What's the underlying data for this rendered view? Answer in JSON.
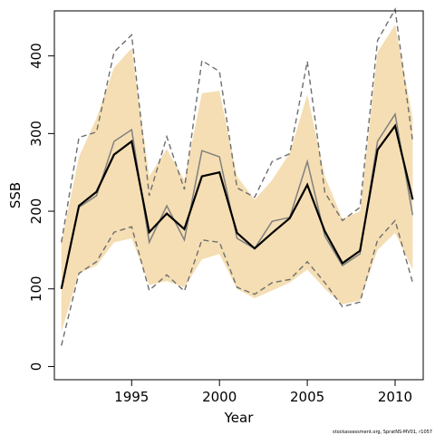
{
  "chart_data": {
    "type": "line",
    "xlabel": "Year",
    "ylabel": "SSB",
    "xlim": [
      1990.6,
      2011.6
    ],
    "ylim": [
      -17,
      458
    ],
    "x_ticks": [
      1995,
      2000,
      2005,
      2010
    ],
    "y_ticks": [
      0,
      100,
      200,
      300,
      400
    ],
    "grid": false,
    "legend": "none",
    "years": [
      1991,
      1992,
      1993,
      1994,
      1995,
      1996,
      1997,
      1998,
      1999,
      2000,
      2001,
      2002,
      2003,
      2004,
      2005,
      2006,
      2007,
      2008,
      2009,
      2010,
      2011
    ],
    "series": [
      {
        "role": "estimate",
        "values": [
          100,
          207,
          225,
          273,
          290,
          173,
          197,
          177,
          245,
          250,
          172,
          152,
          172,
          191,
          234,
          174,
          133,
          149,
          279,
          310,
          215
        ]
      },
      {
        "role": "alternative-estimate",
        "values": [
          100,
          205,
          220,
          290,
          305,
          160,
          207,
          163,
          278,
          270,
          165,
          152,
          187,
          192,
          264,
          168,
          130,
          145,
          290,
          325,
          195
        ]
      },
      {
        "role": "confidence-band-upper",
        "values": [
          160,
          270,
          320,
          385,
          410,
          245,
          280,
          240,
          352,
          355,
          245,
          215,
          240,
          275,
          350,
          245,
          190,
          200,
          405,
          440,
          320
        ]
      },
      {
        "role": "confidence-band-lower",
        "values": [
          45,
          120,
          130,
          160,
          165,
          105,
          110,
          102,
          138,
          145,
          100,
          88,
          98,
          108,
          125,
          100,
          80,
          85,
          150,
          172,
          125
        ]
      },
      {
        "role": "interval-upper-dashed",
        "values": [
          160,
          295,
          302,
          405,
          427,
          220,
          296,
          228,
          394,
          380,
          230,
          218,
          264,
          274,
          393,
          224,
          188,
          205,
          420,
          460,
          290
        ]
      },
      {
        "role": "interval-lower-dashed",
        "values": [
          27,
          120,
          135,
          173,
          180,
          98,
          118,
          97,
          163,
          160,
          102,
          93,
          108,
          112,
          135,
          108,
          77,
          83,
          163,
          188,
          108
        ]
      }
    ],
    "colors": {
      "band": "#f5deb3",
      "estimate": "#000000",
      "alternative": "#808080",
      "dashed": "#6e6e6e"
    }
  },
  "credit": "stockassessment.org, SpratNS-MV01, r1057"
}
